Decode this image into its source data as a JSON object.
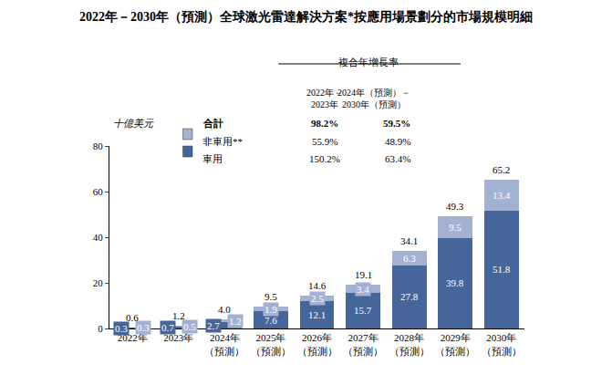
{
  "chart_data": {
    "type": "bar",
    "title": "2022年－2030年（預測）全球激光雷達解決方案*按應用場景劃分的市場規模明細",
    "ylabel": "十億美元",
    "categories": [
      "2022年",
      "2023年",
      "2024年\n（預測）",
      "2025年\n（預測）",
      "2026年\n（預測）",
      "2027年\n（預測）",
      "2028年\n（預測）",
      "2029年\n（預測）",
      "2030年\n（預測）"
    ],
    "series": [
      {
        "name": "車用",
        "color": "#46659a",
        "values": [
          0.3,
          0.7,
          2.7,
          7.6,
          12.1,
          15.7,
          27.8,
          39.8,
          51.8
        ]
      },
      {
        "name": "非車用**",
        "color": "#a3b2d2",
        "values": [
          0.3,
          0.5,
          1.2,
          1.9,
          2.5,
          3.4,
          6.3,
          9.5,
          13.4
        ]
      }
    ],
    "totals": {
      "values": [
        0.6,
        1.2,
        4.0,
        9.5,
        14.6,
        19.1,
        34.1,
        49.3,
        65.2
      ],
      "value_labels": [
        "0.6",
        "1.2",
        "4.0",
        "9.5",
        "14.6",
        "19.1",
        "34.1",
        "49.3",
        "65.2"
      ]
    },
    "cagr_table": {
      "header": "複合年增長率",
      "columns": [
        "2022年－\n2023年",
        "2024年（預測）－\n2030年（預測）"
      ],
      "rows": [
        {
          "label": "合計",
          "values": [
            "98.2%",
            "59.5%"
          ]
        },
        {
          "label": "非車用**",
          "values": [
            "55.9%",
            "48.9%"
          ]
        },
        {
          "label": "車用",
          "values": [
            "150.2%",
            "63.4%"
          ]
        }
      ]
    },
    "ylim": [
      0,
      80
    ],
    "yticks": [
      0,
      20,
      40,
      60,
      80
    ],
    "stacked": true,
    "data_labels": true,
    "grid": false
  }
}
